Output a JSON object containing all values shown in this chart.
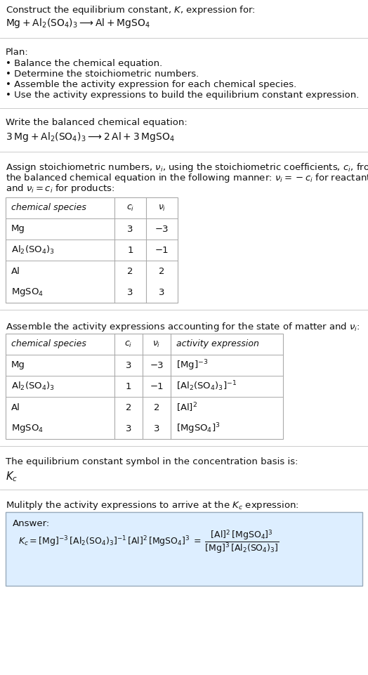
{
  "title_line1": "Construct the equilibrium constant, $K$, expression for:",
  "title_line2": "Mg + Al$_2$(SO$_4$)$_3$ ⟶ Al + MgSO$_4$",
  "plan_header": "Plan:",
  "plan_bullets": [
    "• Balance the chemical equation.",
    "• Determine the stoichiometric numbers.",
    "• Assemble the activity expression for each chemical species.",
    "• Use the activity expressions to build the equilibrium constant expression."
  ],
  "balanced_eq_header": "Write the balanced chemical equation:",
  "balanced_eq": "3 Mg + Al$_2$(SO$_4$)$_3$ ⟶ 2 Al + 3 MgSO$_4$",
  "stoich_intro_lines": [
    "Assign stoichiometric numbers, $\\nu_i$, using the stoichiometric coefficients, $c_i$, from",
    "the balanced chemical equation in the following manner: $\\nu_i = -c_i$ for reactants",
    "and $\\nu_i = c_i$ for products:"
  ],
  "table1_headers": [
    "chemical species",
    "$c_i$",
    "$\\nu_i$"
  ],
  "table1_rows": [
    [
      "Mg",
      "3",
      "−3"
    ],
    [
      "Al$_2$(SO$_4$)$_3$",
      "1",
      "−1"
    ],
    [
      "Al",
      "2",
      "2"
    ],
    [
      "MgSO$_4$",
      "3",
      "3"
    ]
  ],
  "activity_intro": "Assemble the activity expressions accounting for the state of matter and $\\nu_i$:",
  "table2_headers": [
    "chemical species",
    "$c_i$",
    "$\\nu_i$",
    "activity expression"
  ],
  "table2_rows": [
    [
      "Mg",
      "3",
      "−3",
      "[Mg]$^{-3}$"
    ],
    [
      "Al$_2$(SO$_4$)$_3$",
      "1",
      "−1",
      "[Al$_2$(SO$_4$)$_3$]$^{-1}$"
    ],
    [
      "Al",
      "2",
      "2",
      "[Al]$^2$"
    ],
    [
      "MgSO$_4$",
      "3",
      "3",
      "[MgSO$_4$]$^3$"
    ]
  ],
  "kc_symbol_intro": "The equilibrium constant symbol in the concentration basis is:",
  "kc_symbol": "$K_c$",
  "multiply_intro": "Mulitply the activity expressions to arrive at the $K_c$ expression:",
  "answer_label": "Answer:",
  "bg_color": "#ffffff",
  "answer_box_bg": "#ddeeff",
  "answer_box_border": "#99aabb",
  "table_border_color": "#aaaaaa",
  "text_color": "#111111",
  "gray_text": "#555555",
  "font_size": 9.5,
  "line_color": "#cccccc"
}
